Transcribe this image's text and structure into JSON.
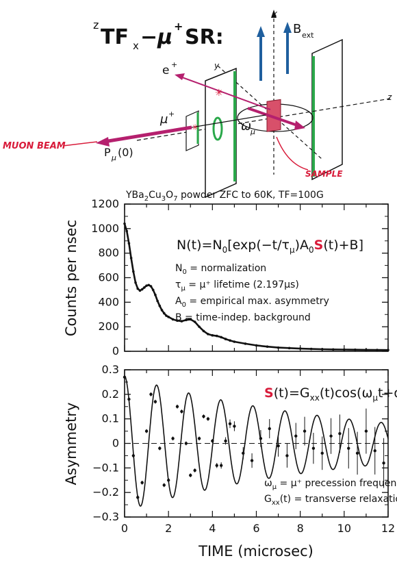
{
  "diagram": {
    "title_prefix": "z",
    "title_main": "TF",
    "title_sub": "x",
    "title_mu": "−μ",
    "title_plus": "+",
    "title_end": "SR:",
    "axis_x": "x",
    "axis_y": "y",
    "axis_z": "z",
    "bext": "B",
    "bext_sub": "ext",
    "electron": "e",
    "electron_sup": "+",
    "muon": "μ",
    "muon_sup": "+",
    "omega": "ω",
    "omega_sub": "μ",
    "pol": "P",
    "pol_sub": "μ",
    "pol_arg": "(0)",
    "muon_beam": "MUON BEAM",
    "sample": "SAMPLE",
    "colors": {
      "red": "#d81b3a",
      "green": "#2aa84a",
      "blue": "#1f5f9e",
      "magenta": "#b5206e"
    }
  },
  "chart_data": [
    {
      "type": "line",
      "title": "YBa2Cu3O7 powder ZFC to 60K, TF=100G",
      "title_parts": {
        "a": "YBa",
        "b": "2",
        "c": "Cu",
        "d": "3",
        "e": "O",
        "f": "7",
        "g": " powder ZFC to 60K, TF=100G"
      },
      "xlabel": "",
      "ylabel": "Counts per nsec",
      "xlim": [
        0,
        12
      ],
      "ylim": [
        0,
        1200
      ],
      "yticks": [
        "0",
        "200",
        "400",
        "600",
        "800",
        "1000",
        "1200"
      ],
      "equation": "N(t)=N0[exp(−t/τμ)A0S(t)+B]",
      "equation_parts": {
        "a": "N(t)=N",
        "b": "0",
        "c": "[exp(−t/τ",
        "d": "μ",
        "e": ")A",
        "f": "0",
        "g": "S",
        "h": "(t)+B]"
      },
      "legend_notes": [
        {
          "sym": "N",
          "sub": "0",
          "text": " = normalization"
        },
        {
          "sym": "τ",
          "sub": "μ",
          "text": " = μ⁺ lifetime (2.197μs)"
        },
        {
          "sym": "A",
          "sub": "0",
          "text": " = empirical max. asymmetry"
        },
        {
          "sym": "B",
          "sub": "",
          "text": " = time-indep. background"
        }
      ],
      "series": [
        {
          "x": [
            0,
            0.1,
            0.2,
            0.3,
            0.4,
            0.5,
            0.6,
            0.7,
            0.8,
            0.9,
            1.0,
            1.1,
            1.2,
            1.3,
            1.4,
            1.5,
            1.6,
            1.7,
            1.8,
            1.9,
            2.0,
            2.2,
            2.4,
            2.6,
            2.8,
            3.0,
            3.2,
            3.4,
            3.6,
            3.8,
            4.0,
            4.2,
            4.4,
            4.6,
            4.8,
            5.0,
            5.5,
            6.0,
            6.5,
            7.0,
            7.5,
            8.0,
            8.5,
            9.0,
            9.5,
            10.0,
            10.5,
            11.0,
            11.5,
            12.0
          ],
          "values": [
            1040,
            980,
            880,
            760,
            650,
            560,
            510,
            495,
            505,
            520,
            535,
            540,
            530,
            500,
            460,
            410,
            370,
            335,
            310,
            290,
            280,
            260,
            250,
            245,
            255,
            260,
            240,
            200,
            165,
            140,
            130,
            125,
            115,
            100,
            88,
            78,
            62,
            48,
            38,
            30,
            26,
            22,
            19,
            17,
            15,
            14,
            13,
            12,
            11,
            10
          ]
        }
      ]
    },
    {
      "type": "line",
      "title": "",
      "xlabel": "TIME (microsec)",
      "ylabel": "Asymmetry",
      "xlim": [
        0,
        12
      ],
      "ylim": [
        -0.3,
        0.3
      ],
      "xticks": [
        "0",
        "2",
        "4",
        "6",
        "8",
        "10",
        "12"
      ],
      "yticks": [
        "−0.3",
        "−0.2",
        "−0.1",
        "0",
        "0.1",
        "0.2",
        "0.3"
      ],
      "equation": "S(t)=Gxx(t)cos(ωμt+φ)",
      "equation_parts": {
        "a": "S",
        "b": "(t)=G",
        "c": "xx",
        "d": "(t)cos(ω",
        "e": "μ",
        "f": "t+φ)"
      },
      "legend_notes": [
        {
          "sym": "ω",
          "sub": "μ",
          "text": " = μ⁺ precession frequency"
        },
        {
          "sym": "G",
          "sub": "xx",
          "text": "(t) = transverse relaxation function"
        }
      ],
      "fit": {
        "amplitude": 0.275,
        "omega": 4.3,
        "phase": 0.0,
        "decay": 0.1
      },
      "series": [
        {
          "x": [
            0,
            0.2,
            0.4,
            0.6,
            0.8,
            1.0,
            1.2,
            1.4,
            1.6,
            1.8,
            2.0,
            2.2,
            2.4,
            2.6,
            2.8,
            3.0,
            3.2,
            3.4,
            3.6,
            3.8,
            4.0,
            4.2,
            4.4,
            4.6,
            4.8,
            5.0,
            5.4,
            5.8,
            6.2,
            6.6,
            7.0,
            7.4,
            7.8,
            8.2,
            8.6,
            9.0,
            9.4,
            9.8,
            10.2,
            10.6,
            11.0,
            11.4,
            11.8
          ],
          "values": [
            0.27,
            0.18,
            -0.05,
            -0.22,
            -0.16,
            0.05,
            0.2,
            0.17,
            -0.02,
            -0.17,
            -0.15,
            0.02,
            0.15,
            0.13,
            0.0,
            -0.13,
            -0.11,
            0.02,
            0.11,
            0.1,
            0.01,
            -0.09,
            -0.09,
            0.01,
            0.08,
            0.07,
            -0.04,
            -0.07,
            0.02,
            0.06,
            -0.01,
            -0.05,
            0.03,
            0.05,
            -0.02,
            -0.04,
            0.03,
            0.04,
            -0.02,
            -0.04,
            0.05,
            -0.03,
            -0.08
          ]
        }
      ]
    }
  ]
}
